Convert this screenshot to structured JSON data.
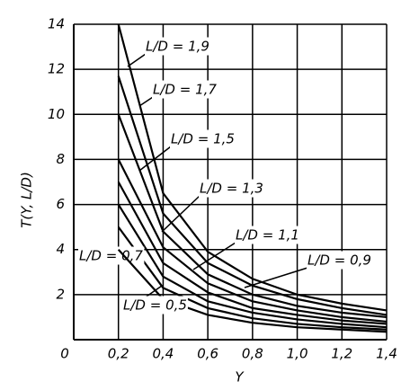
{
  "chart_data": {
    "type": "line",
    "x_label": "Y",
    "y_label": "T(Y, L/D)",
    "x": [
      0.2,
      0.4,
      0.6,
      0.8,
      1.0,
      1.2,
      1.4
    ],
    "series": [
      {
        "name": "L/D = 1,9",
        "color": "#000000",
        "values": [
          14,
          6.5,
          3.9,
          2.7,
          2.0,
          1.6,
          1.3
        ]
      },
      {
        "name": "L/D = 1,7",
        "color": "#000000",
        "values": [
          11.7,
          5.6,
          3.4,
          2.4,
          1.8,
          1.4,
          1.1
        ]
      },
      {
        "name": "L/D = 1,5",
        "color": "#000000",
        "values": [
          10,
          4.8,
          2.9,
          2.0,
          1.5,
          1.2,
          1.0
        ]
      },
      {
        "name": "L/D = 1,3",
        "color": "#000000",
        "values": [
          8,
          4.1,
          2.5,
          1.7,
          1.3,
          1.0,
          0.8
        ]
      },
      {
        "name": "L/D = 1,1",
        "color": "#000000",
        "values": [
          7,
          3.4,
          2.1,
          1.4,
          1.1,
          0.85,
          0.7
        ]
      },
      {
        "name": "L/D = 0,9",
        "color": "#000000",
        "values": [
          6,
          2.8,
          1.7,
          1.2,
          0.9,
          0.7,
          0.55
        ]
      },
      {
        "name": "L/D = 0,7",
        "color": "#000000",
        "values": [
          5,
          2.3,
          1.4,
          0.95,
          0.7,
          0.55,
          0.45
        ]
      },
      {
        "name": "L/D = 0,5",
        "color": "#000000",
        "values": [
          4,
          1.8,
          1.1,
          0.75,
          0.55,
          0.45,
          0.35
        ]
      }
    ],
    "xlim": [
      0,
      1.4
    ],
    "ylim": [
      0,
      14
    ],
    "xticks": [
      0,
      {
        "value": 0.2,
        "label": "0,2"
      },
      {
        "value": 0.4,
        "label": "0,4"
      },
      {
        "value": 0.6,
        "label": "0,6"
      },
      {
        "value": 0.8,
        "label": "0,8"
      },
      {
        "value": 1.0,
        "label": "1,0"
      },
      {
        "value": 1.2,
        "label": "1,2"
      },
      {
        "value": 1.4,
        "label": "1,4"
      }
    ],
    "yticks": [
      2,
      4,
      6,
      8,
      10,
      12,
      14
    ],
    "grid": true
  }
}
